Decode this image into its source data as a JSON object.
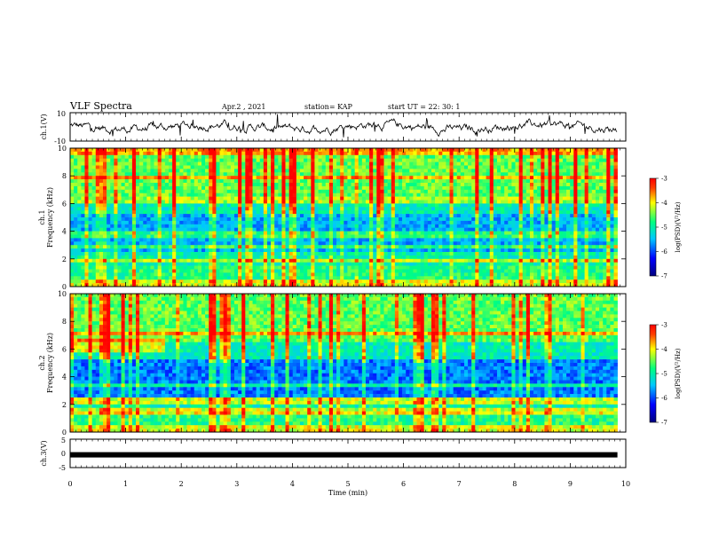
{
  "header": {
    "title": "VLF Spectra",
    "date": "Apr.2 , 2021",
    "station": "station= KAP",
    "start": "start  UT =   22: 30: 1"
  },
  "chart_data": [
    {
      "type": "line",
      "name": "ch1-voltage",
      "ylabel": "ch.1(V)",
      "ylim": [
        -10,
        10
      ],
      "yticks": [
        "10",
        "-10"
      ],
      "xlim": [
        0,
        10
      ],
      "trace_end_x": 9.85
    },
    {
      "type": "heatmap",
      "name": "ch1-spectrogram",
      "ylabel": "ch.1\nFrequency (kHz)",
      "ylim": [
        0,
        10
      ],
      "yticks": [
        "0",
        "2",
        "4",
        "6",
        "8",
        "10"
      ],
      "xlim": [
        0,
        10
      ],
      "data_end_x": 9.85,
      "colorbar": {
        "label": "log(PSD)(V²/Hz)",
        "range": [
          -7,
          -3
        ],
        "ticks": [
          "-3",
          "-4",
          "-5",
          "-6",
          "-7"
        ]
      }
    },
    {
      "type": "heatmap",
      "name": "ch2-spectrogram",
      "ylabel": "ch.2\nFrequency (kHz)",
      "ylim": [
        0,
        10
      ],
      "yticks": [
        "0",
        "2",
        "4",
        "6",
        "8",
        "10"
      ],
      "xlim": [
        0,
        10
      ],
      "data_end_x": 9.85,
      "colorbar": {
        "label": "log(PSD)(V²/Hz)",
        "range": [
          -7,
          -3
        ],
        "ticks": [
          "-3",
          "-4",
          "-5",
          "-6",
          "-7"
        ]
      }
    },
    {
      "type": "line",
      "name": "ch3-voltage",
      "ylabel": "ch.3(V)",
      "ylim": [
        -5,
        5
      ],
      "yticks": [
        "5",
        "0",
        "-5"
      ],
      "xlim": [
        0,
        10
      ],
      "trace_end_x": 9.85,
      "constant_value": -0.5
    }
  ],
  "xaxis": {
    "label": "Time (min)",
    "ticks": [
      "0",
      "1",
      "2",
      "3",
      "4",
      "5",
      "6",
      "7",
      "8",
      "9",
      "10"
    ]
  },
  "colors": {
    "colormap": [
      "#000080",
      "#0000ff",
      "#00c8ff",
      "#00ff80",
      "#ffff00",
      "#ff0000"
    ],
    "line": "#000000"
  }
}
